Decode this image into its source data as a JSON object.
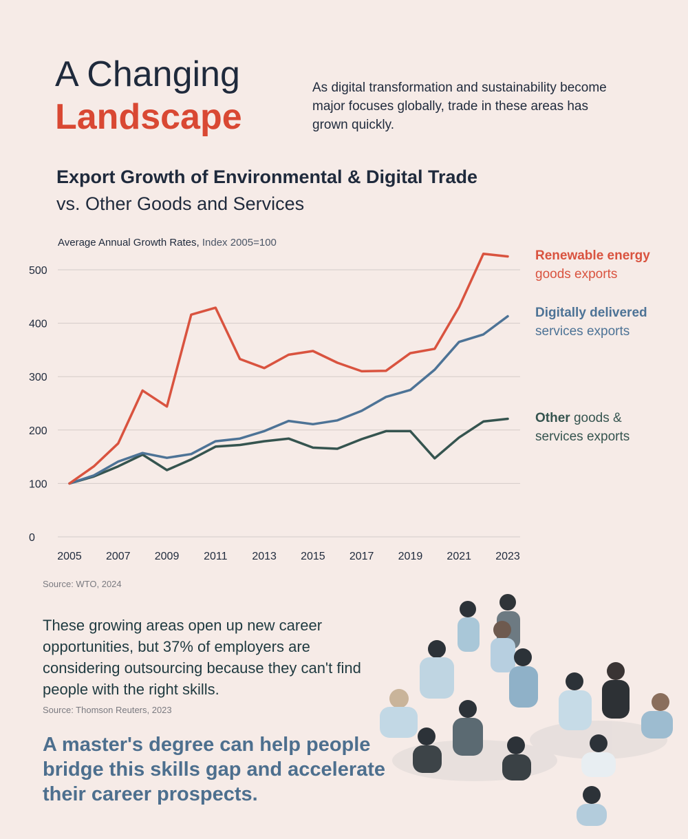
{
  "header": {
    "title_line1": "A Changing",
    "title_line2": "Landscape",
    "intro": "As digital transformation and sustainability become major focuses globally, trade in these areas has grown quickly."
  },
  "chart_header": {
    "title": "Export Growth of Environmental & Digital Trade",
    "subtitle": "vs. Other Goods and Services",
    "axis_note_bold": "Average Annual Growth Rates,",
    "axis_note_rest": "Index 2005=100"
  },
  "legend": {
    "renewable_bold": "Renewable energy",
    "renewable_rest": "goods exports",
    "digital_bold": "Digitally delivered",
    "digital_rest": "services exports",
    "other_bold": "Other",
    "other_rest1": "goods &",
    "other_rest2": "services exports"
  },
  "chart_source": "Source: WTO, 2024",
  "body_text": "These growing areas open up new career opportunities, but 37% of employers are considering outsourcing because they can't find people with the right skills.",
  "body_source": "Source: Thomson Reuters, 2023",
  "cta": "A master's degree can help people bridge this skills gap and accelerate their career prospects.",
  "colors": {
    "background": "#f6ebe7",
    "renewable": "#d9533f",
    "digital": "#4d7396",
    "other": "#35544f",
    "navy": "#1f2a3c"
  },
  "chart_data": {
    "type": "line",
    "x": [
      2005,
      2006,
      2007,
      2008,
      2009,
      2010,
      2011,
      2012,
      2013,
      2014,
      2015,
      2016,
      2017,
      2018,
      2019,
      2020,
      2021,
      2022,
      2023
    ],
    "x_ticks": [
      "2005",
      "2007",
      "2009",
      "2011",
      "2013",
      "2015",
      "2017",
      "2019",
      "2021",
      "2023"
    ],
    "y_ticks": [
      "0",
      "100",
      "200",
      "300",
      "400",
      "500"
    ],
    "ylim": [
      0,
      500
    ],
    "grid": true,
    "series": [
      {
        "key": "renewable",
        "values": [
          100,
          132,
          175,
          274,
          244,
          416,
          429,
          333,
          316,
          341,
          348,
          326,
          310,
          311,
          344,
          352,
          430,
          530,
          525
        ]
      },
      {
        "key": "digital",
        "values": [
          100,
          115,
          141,
          157,
          148,
          155,
          179,
          184,
          198,
          217,
          211,
          218,
          236,
          262,
          275,
          313,
          365,
          379,
          413
        ]
      },
      {
        "key": "other",
        "values": [
          100,
          113,
          132,
          154,
          125,
          145,
          169,
          172,
          179,
          184,
          167,
          165,
          183,
          198,
          198,
          147,
          186,
          216,
          221
        ]
      }
    ]
  }
}
